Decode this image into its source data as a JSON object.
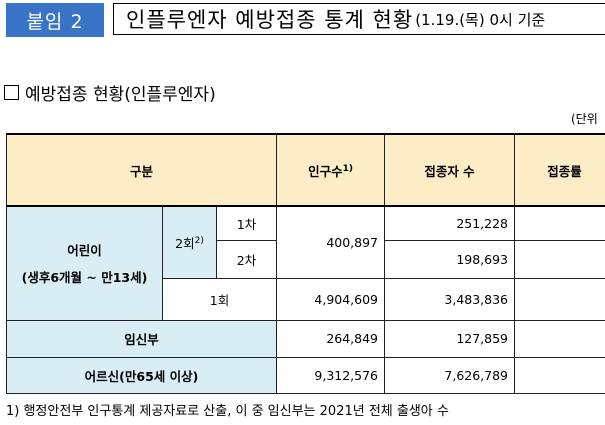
{
  "header": {
    "badge": "붙임 2",
    "title": "인플루엔자 예방접종 통계 현황",
    "title_sub": "(1.19.(목) 0시 기준"
  },
  "section": {
    "title": "예방접종 현황(인플루엔자)"
  },
  "unit": "(단위",
  "table": {
    "col_category": "구분",
    "col_population": "인구수",
    "col_population_sup": "1)",
    "col_vaccinated": "접종자 수",
    "col_rate": "접종률",
    "children_label": "어린이",
    "children_sub": "(생후6개월 ~ 만13세)",
    "two_dose": "2회",
    "two_dose_sup": "2)",
    "dose1": "1차",
    "dose2": "2차",
    "one_dose": "1회",
    "children_2dose_population": "400,897",
    "children_dose1_vaccinated": "251,228",
    "children_dose2_vaccinated": "198,693",
    "children_1dose_population": "4,904,609",
    "children_1dose_vaccinated": "3,483,836",
    "pregnant_label": "임신부",
    "pregnant_population": "264,849",
    "pregnant_vaccinated": "127,859",
    "elderly_label": "어르신(만65세 이상)",
    "elderly_population": "9,312,576",
    "elderly_vaccinated": "7,626,789"
  },
  "footnote": "1) 행정안전부 인구통계 제공자료로 산출, 이 중 임신부는 2021년 전체 출생아 수"
}
